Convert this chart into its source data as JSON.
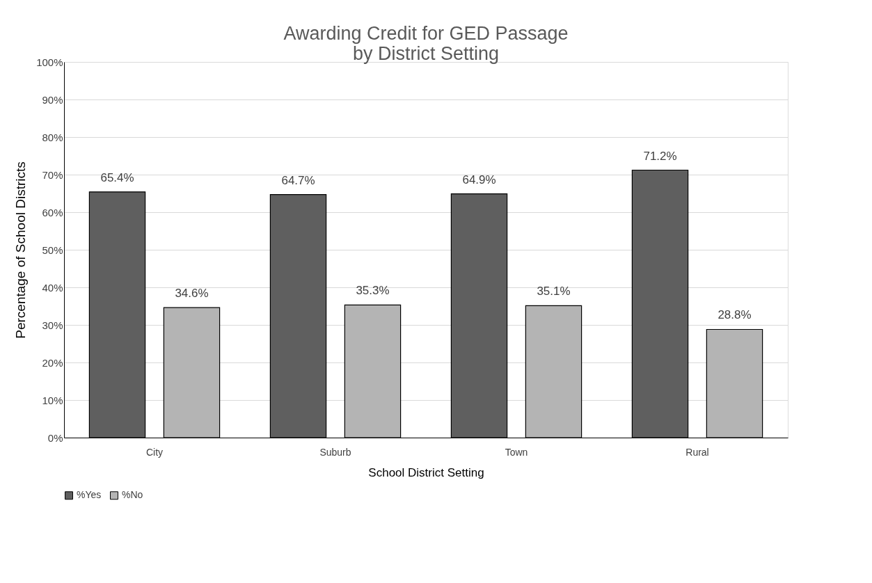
{
  "chart_data": {
    "type": "bar",
    "title": [
      "Awarding Credit for GED Passage",
      "by District Setting"
    ],
    "categories": [
      "City",
      "Suburb",
      "Town",
      "Rural"
    ],
    "series": [
      {
        "name": "%Yes",
        "color": "#5f5f5f",
        "values": [
          65.4,
          64.7,
          64.9,
          71.2
        ],
        "value_labels": [
          "65.4%",
          "64.7%",
          "64.9%",
          "71.2%"
        ]
      },
      {
        "name": "%No",
        "color": "#b4b4b4",
        "values": [
          34.6,
          35.3,
          35.1,
          28.8
        ],
        "value_labels": [
          "34.6%",
          "35.3%",
          "35.1%",
          "28.8%"
        ]
      }
    ],
    "xlabel": "School District Setting",
    "ylabel": "Percentage of School Districts",
    "ylim": [
      0,
      100
    ],
    "yticks": [
      {
        "value": 0,
        "label": "0%"
      },
      {
        "value": 10,
        "label": "10%"
      },
      {
        "value": 20,
        "label": "20%"
      },
      {
        "value": 30,
        "label": "30%"
      },
      {
        "value": 40,
        "label": "40%"
      },
      {
        "value": 50,
        "label": "50%"
      },
      {
        "value": 60,
        "label": "60%"
      },
      {
        "value": 70,
        "label": "70%"
      },
      {
        "value": 80,
        "label": "80%"
      },
      {
        "value": 90,
        "label": "90%"
      },
      {
        "value": 100,
        "label": "100%"
      }
    ],
    "grid": "y",
    "legend": "bottom"
  }
}
